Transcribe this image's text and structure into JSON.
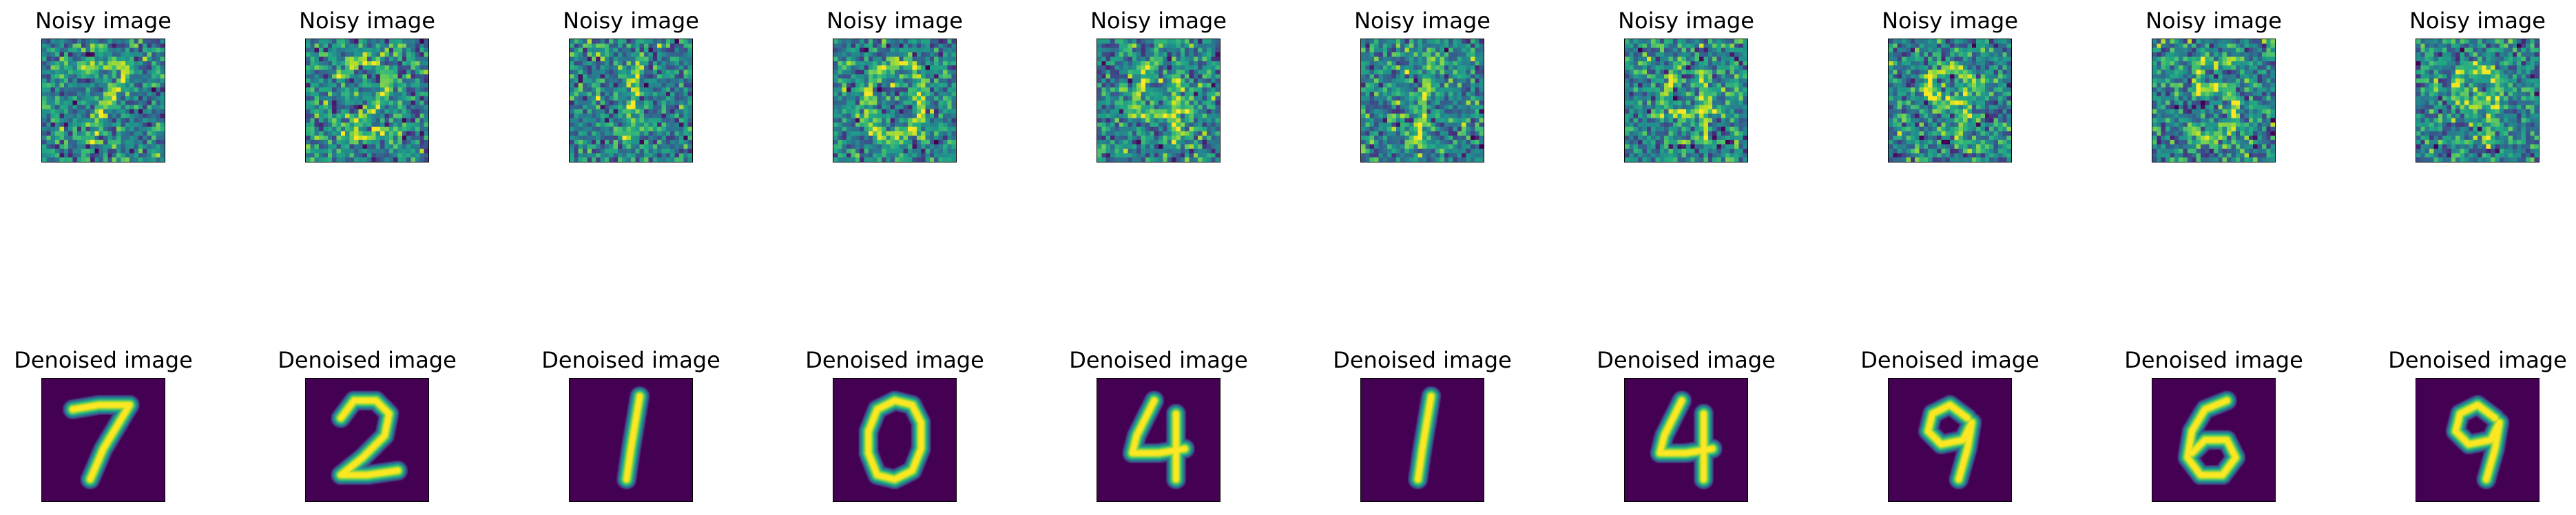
{
  "figure": {
    "colormap": "viridis",
    "colors": {
      "background": "#ffffff",
      "frame": "#000000",
      "text": "#000000",
      "viridis_low": "#440154",
      "viridis_mid": "#21918c",
      "viridis_high": "#fde725"
    }
  },
  "rows": [
    {
      "title": "Noisy image",
      "kind": "noisy",
      "digits": [
        7,
        2,
        1,
        0,
        4,
        1,
        4,
        9,
        5,
        9
      ]
    },
    {
      "title": "Denoised image",
      "kind": "denoised",
      "digits": [
        7,
        2,
        1,
        0,
        4,
        1,
        4,
        9,
        6,
        9
      ]
    }
  ]
}
